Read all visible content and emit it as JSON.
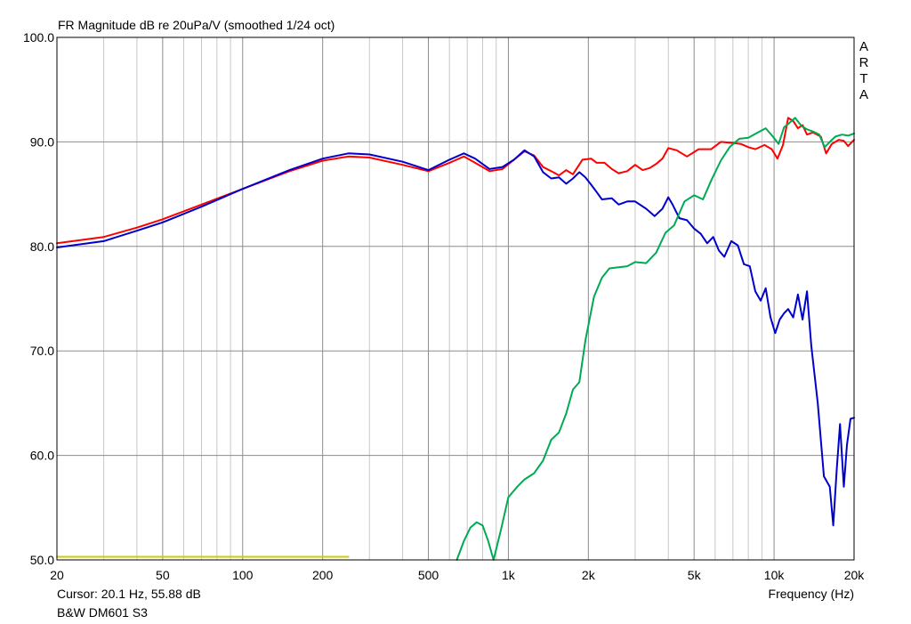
{
  "chart_data": {
    "type": "line",
    "title": "FR Magnitude dB re 20uPa/V (smoothed 1/24 oct)",
    "xlabel": "Frequency (Hz)",
    "ylabel": "",
    "xscale": "log",
    "xlim": [
      20,
      20000
    ],
    "ylim": [
      50,
      100
    ],
    "grid": true,
    "x_ticks": [
      {
        "value": 20,
        "label": "20"
      },
      {
        "value": 50,
        "label": "50"
      },
      {
        "value": 100,
        "label": "100"
      },
      {
        "value": 200,
        "label": "200"
      },
      {
        "value": 500,
        "label": "500"
      },
      {
        "value": 1000,
        "label": "1k"
      },
      {
        "value": 2000,
        "label": "2k"
      },
      {
        "value": 5000,
        "label": "5k"
      },
      {
        "value": 10000,
        "label": "10k"
      },
      {
        "value": 20000,
        "label": "20k"
      }
    ],
    "y_ticks": [
      {
        "value": 50,
        "label": "50.0"
      },
      {
        "value": 60,
        "label": "60.0"
      },
      {
        "value": 70,
        "label": "70.0"
      },
      {
        "value": 80,
        "label": "80.0"
      },
      {
        "value": 90,
        "label": "90.0"
      },
      {
        "value": 100,
        "label": "100.0"
      }
    ],
    "series": [
      {
        "color": "#ff0000",
        "points": [
          [
            20,
            80.3
          ],
          [
            30,
            80.9
          ],
          [
            40,
            81.8
          ],
          [
            50,
            82.6
          ],
          [
            70,
            84.0
          ],
          [
            100,
            85.5
          ],
          [
            150,
            87.2
          ],
          [
            200,
            88.2
          ],
          [
            250,
            88.6
          ],
          [
            300,
            88.5
          ],
          [
            400,
            87.8
          ],
          [
            500,
            87.2
          ],
          [
            600,
            88.0
          ],
          [
            680,
            88.6
          ],
          [
            750,
            88.0
          ],
          [
            850,
            87.2
          ],
          [
            950,
            87.4
          ],
          [
            1050,
            88.3
          ],
          [
            1150,
            89.1
          ],
          [
            1250,
            88.7
          ],
          [
            1350,
            87.6
          ],
          [
            1450,
            87.2
          ],
          [
            1550,
            86.8
          ],
          [
            1650,
            87.3
          ],
          [
            1750,
            86.9
          ],
          [
            1900,
            88.3
          ],
          [
            2050,
            88.4
          ],
          [
            2150,
            88.0
          ],
          [
            2300,
            88.0
          ],
          [
            2450,
            87.4
          ],
          [
            2600,
            87.0
          ],
          [
            2800,
            87.2
          ],
          [
            3000,
            87.8
          ],
          [
            3200,
            87.3
          ],
          [
            3400,
            87.5
          ],
          [
            3600,
            87.9
          ],
          [
            3800,
            88.4
          ],
          [
            4000,
            89.4
          ],
          [
            4300,
            89.2
          ],
          [
            4700,
            88.6
          ],
          [
            5200,
            89.3
          ],
          [
            5800,
            89.3
          ],
          [
            6300,
            90.0
          ],
          [
            7000,
            89.9
          ],
          [
            7500,
            89.8
          ],
          [
            8000,
            89.5
          ],
          [
            8500,
            89.3
          ],
          [
            9200,
            89.7
          ],
          [
            9800,
            89.3
          ],
          [
            10300,
            88.4
          ],
          [
            10800,
            89.7
          ],
          [
            11300,
            92.3
          ],
          [
            11800,
            92.0
          ],
          [
            12300,
            91.3
          ],
          [
            12800,
            91.6
          ],
          [
            13300,
            90.7
          ],
          [
            14000,
            90.9
          ],
          [
            15000,
            90.5
          ],
          [
            15700,
            88.9
          ],
          [
            16500,
            89.8
          ],
          [
            17500,
            90.2
          ],
          [
            18300,
            90.1
          ],
          [
            19000,
            89.6
          ],
          [
            20000,
            90.2
          ]
        ]
      },
      {
        "color": "#0000cc",
        "points": [
          [
            20,
            79.9
          ],
          [
            30,
            80.5
          ],
          [
            40,
            81.5
          ],
          [
            50,
            82.3
          ],
          [
            70,
            83.8
          ],
          [
            100,
            85.5
          ],
          [
            150,
            87.3
          ],
          [
            200,
            88.4
          ],
          [
            250,
            88.9
          ],
          [
            300,
            88.8
          ],
          [
            400,
            88.1
          ],
          [
            500,
            87.3
          ],
          [
            600,
            88.3
          ],
          [
            680,
            88.9
          ],
          [
            750,
            88.4
          ],
          [
            850,
            87.4
          ],
          [
            950,
            87.6
          ],
          [
            1050,
            88.3
          ],
          [
            1150,
            89.2
          ],
          [
            1250,
            88.6
          ],
          [
            1350,
            87.1
          ],
          [
            1450,
            86.5
          ],
          [
            1550,
            86.6
          ],
          [
            1650,
            86.0
          ],
          [
            1750,
            86.5
          ],
          [
            1850,
            87.1
          ],
          [
            1950,
            86.6
          ],
          [
            2050,
            85.9
          ],
          [
            2150,
            85.2
          ],
          [
            2250,
            84.5
          ],
          [
            2450,
            84.6
          ],
          [
            2600,
            84.0
          ],
          [
            2800,
            84.3
          ],
          [
            3000,
            84.3
          ],
          [
            3300,
            83.6
          ],
          [
            3550,
            82.9
          ],
          [
            3800,
            83.6
          ],
          [
            4000,
            84.7
          ],
          [
            4150,
            84.0
          ],
          [
            4400,
            82.7
          ],
          [
            4700,
            82.5
          ],
          [
            5000,
            81.7
          ],
          [
            5300,
            81.2
          ],
          [
            5600,
            80.3
          ],
          [
            5900,
            80.9
          ],
          [
            6200,
            79.6
          ],
          [
            6500,
            79.0
          ],
          [
            6900,
            80.5
          ],
          [
            7300,
            80.1
          ],
          [
            7700,
            78.3
          ],
          [
            8100,
            78.1
          ],
          [
            8500,
            75.7
          ],
          [
            8900,
            74.8
          ],
          [
            9300,
            76.0
          ],
          [
            9700,
            73.2
          ],
          [
            10100,
            71.7
          ],
          [
            10500,
            73.0
          ],
          [
            10900,
            73.6
          ],
          [
            11300,
            74.0
          ],
          [
            11800,
            73.2
          ],
          [
            12300,
            75.4
          ],
          [
            12800,
            73.0
          ],
          [
            13300,
            75.7
          ],
          [
            13800,
            70.5
          ],
          [
            14600,
            65.0
          ],
          [
            15400,
            58.0
          ],
          [
            16200,
            57.0
          ],
          [
            16700,
            53.3
          ],
          [
            17200,
            58.5
          ],
          [
            17700,
            63.0
          ],
          [
            18300,
            57.0
          ],
          [
            18800,
            61.0
          ],
          [
            19400,
            63.5
          ],
          [
            20000,
            63.6
          ]
        ]
      },
      {
        "color": "#00aa55",
        "points": [
          [
            640,
            50.0
          ],
          [
            680,
            51.8
          ],
          [
            720,
            53.1
          ],
          [
            760,
            53.6
          ],
          [
            800,
            53.3
          ],
          [
            840,
            51.8
          ],
          [
            880,
            50.0
          ],
          [
            940,
            53.0
          ],
          [
            1000,
            56.0
          ],
          [
            1080,
            57.0
          ],
          [
            1150,
            57.7
          ],
          [
            1250,
            58.3
          ],
          [
            1350,
            59.5
          ],
          [
            1450,
            61.5
          ],
          [
            1550,
            62.2
          ],
          [
            1650,
            64.0
          ],
          [
            1750,
            66.3
          ],
          [
            1850,
            67.0
          ],
          [
            1950,
            71.0
          ],
          [
            2100,
            75.2
          ],
          [
            2250,
            77.0
          ],
          [
            2400,
            77.9
          ],
          [
            2600,
            78.0
          ],
          [
            2800,
            78.1
          ],
          [
            3000,
            78.5
          ],
          [
            3300,
            78.4
          ],
          [
            3600,
            79.4
          ],
          [
            3900,
            81.3
          ],
          [
            4200,
            82.0
          ],
          [
            4600,
            84.3
          ],
          [
            5000,
            84.9
          ],
          [
            5400,
            84.5
          ],
          [
            5800,
            86.3
          ],
          [
            6300,
            88.2
          ],
          [
            6800,
            89.5
          ],
          [
            7400,
            90.3
          ],
          [
            8000,
            90.4
          ],
          [
            8700,
            90.9
          ],
          [
            9300,
            91.3
          ],
          [
            9900,
            90.5
          ],
          [
            10400,
            89.8
          ],
          [
            10900,
            91.4
          ],
          [
            11400,
            91.8
          ],
          [
            12000,
            92.3
          ],
          [
            12700,
            91.5
          ],
          [
            13300,
            91.2
          ],
          [
            14000,
            91.0
          ],
          [
            14800,
            90.7
          ],
          [
            15500,
            89.5
          ],
          [
            16200,
            90.0
          ],
          [
            17000,
            90.5
          ],
          [
            18000,
            90.7
          ],
          [
            19000,
            90.6
          ],
          [
            20000,
            90.8
          ]
        ]
      },
      {
        "color": "#cccc00",
        "points": [
          [
            20,
            50.3
          ],
          [
            250,
            50.3
          ]
        ]
      }
    ],
    "watermark": [
      "A",
      "R",
      "T",
      "A"
    ],
    "cursor_text": "Cursor: 20.1 Hz, 55.88 dB",
    "device_name": "B&W DM601 S3"
  }
}
